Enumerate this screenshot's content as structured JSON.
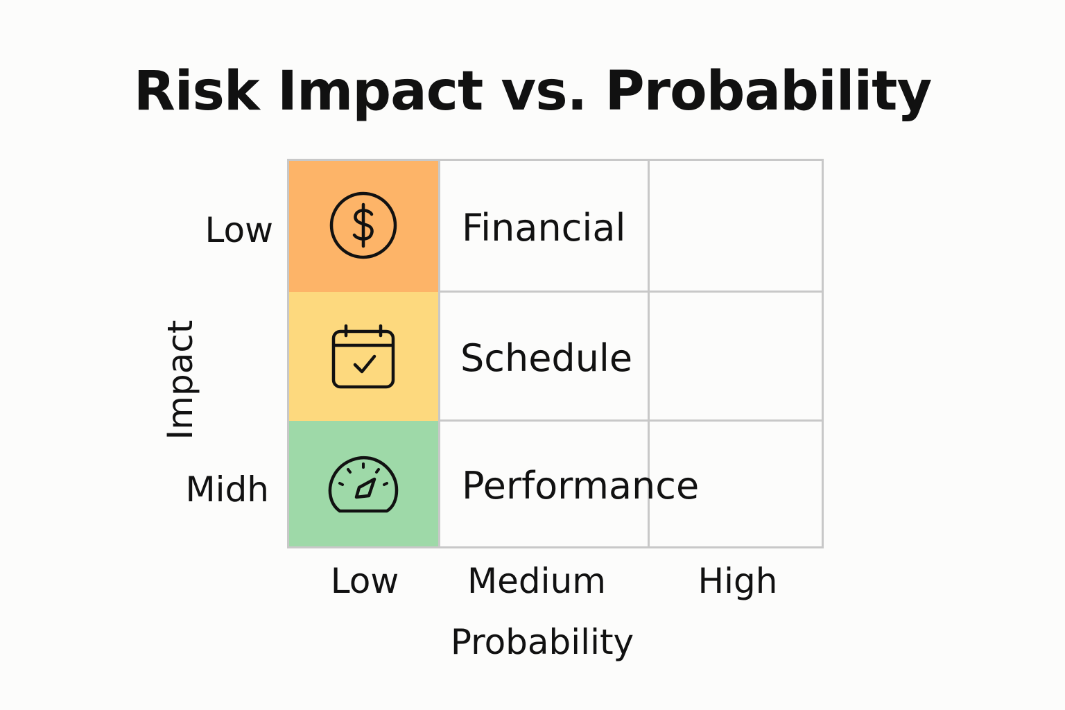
{
  "chart_data": {
    "type": "table",
    "title": "Risk Impact vs. Probability",
    "xlabel": "Probability",
    "ylabel": "Impact",
    "x_categories": [
      "Low",
      "Medium",
      "High"
    ],
    "y_categories": [
      "Low",
      "",
      "Midh"
    ],
    "rows": [
      {
        "label": "Financial",
        "icon": "dollar-coin-icon",
        "color": "#fdb468"
      },
      {
        "label": "Schedule",
        "icon": "calendar-check-icon",
        "color": "#fdd97e"
      },
      {
        "label": "Performance",
        "icon": "speedometer-icon",
        "color": "#9ed9a8"
      }
    ]
  },
  "colors": {
    "grid": "#c8c8c8",
    "text": "#111111",
    "background": "#fcfcfb"
  }
}
